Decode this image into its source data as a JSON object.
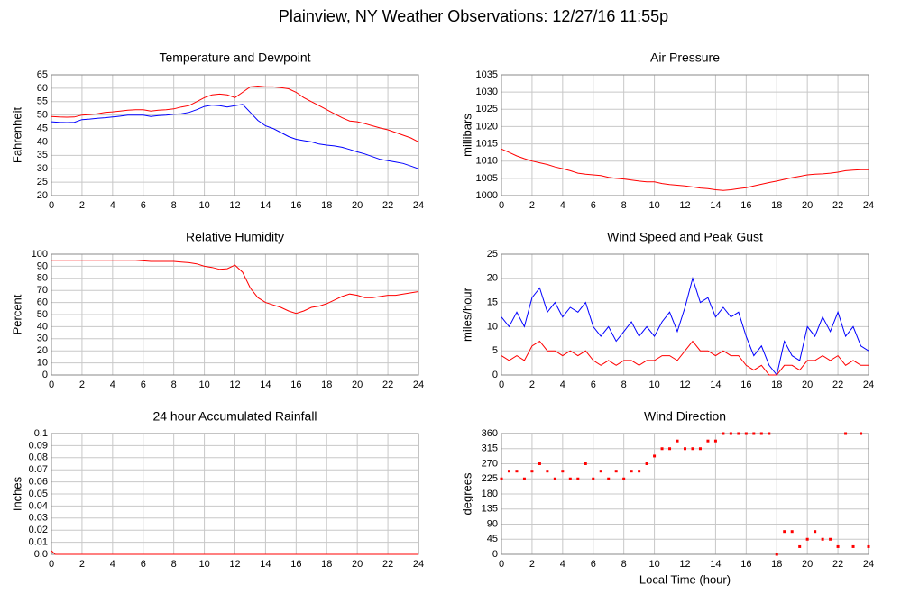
{
  "title": "Plainview, NY Weather Observations: 12/27/16 11:55p",
  "chart_data": [
    {
      "type": "line",
      "title": "Temperature and Dewpoint",
      "ylabel": "Fahrenheit",
      "xlim": [
        0,
        24
      ],
      "xticks": [
        0,
        2,
        4,
        6,
        8,
        10,
        12,
        14,
        16,
        18,
        20,
        22,
        24
      ],
      "ylim": [
        20,
        65
      ],
      "yticks": [
        20,
        25,
        30,
        35,
        40,
        45,
        50,
        55,
        60,
        65
      ],
      "grid": true,
      "x": [
        0,
        0.5,
        1,
        1.5,
        2,
        2.5,
        3,
        3.5,
        4,
        4.5,
        5,
        5.5,
        6,
        6.5,
        7,
        7.5,
        8,
        8.5,
        9,
        9.5,
        10,
        10.5,
        11,
        11.5,
        12,
        12.5,
        13,
        13.5,
        14,
        14.5,
        15,
        15.5,
        16,
        16.5,
        17,
        17.5,
        18,
        18.5,
        19,
        19.5,
        20,
        20.5,
        21,
        21.5,
        22,
        22.5,
        23,
        23.5,
        24
      ],
      "series": [
        {
          "color": "#ff0000",
          "values": [
            49.5,
            49.3,
            49.2,
            49.3,
            50,
            50.2,
            50.5,
            51,
            51.2,
            51.5,
            51.8,
            52,
            52,
            51.5,
            51.8,
            52,
            52.3,
            53,
            53.5,
            55,
            56.5,
            57.5,
            57.8,
            57.5,
            56.5,
            58.5,
            60.5,
            60.8,
            60.5,
            60.5,
            60.2,
            59.8,
            58.5,
            56.5,
            55,
            53.5,
            52,
            50.5,
            49,
            47.8,
            47.5,
            46.8,
            46,
            45.2,
            44.5,
            43.5,
            42.5,
            41.5,
            40
          ]
        },
        {
          "color": "#0000ff",
          "values": [
            47.5,
            47.3,
            47.2,
            47.3,
            48.3,
            48.5,
            48.8,
            49,
            49.3,
            49.6,
            50,
            50,
            50,
            49.5,
            49.8,
            50,
            50.3,
            50.5,
            51,
            52,
            53.2,
            53.7,
            53.5,
            53,
            53.5,
            54,
            51,
            48,
            46,
            45,
            43.5,
            42,
            41,
            40.5,
            40,
            39.2,
            38.8,
            38.5,
            38,
            37.2,
            36.3,
            35.5,
            34.5,
            33.5,
            33,
            32.5,
            32,
            31,
            30
          ]
        }
      ]
    },
    {
      "type": "line",
      "title": "Air Pressure",
      "ylabel": "millibars",
      "xlim": [
        0,
        24
      ],
      "xticks": [
        0,
        2,
        4,
        6,
        8,
        10,
        12,
        14,
        16,
        18,
        20,
        22,
        24
      ],
      "ylim": [
        1000,
        1035
      ],
      "yticks": [
        1000,
        1005,
        1010,
        1015,
        1020,
        1025,
        1030,
        1035
      ],
      "grid": true,
      "x": [
        0,
        0.5,
        1,
        1.5,
        2,
        2.5,
        3,
        3.5,
        4,
        4.5,
        5,
        5.5,
        6,
        6.5,
        7,
        7.5,
        8,
        8.5,
        9,
        9.5,
        10,
        10.5,
        11,
        11.5,
        12,
        12.5,
        13,
        13.5,
        14,
        14.5,
        15,
        15.5,
        16,
        16.5,
        17,
        17.5,
        18,
        18.5,
        19,
        19.5,
        20,
        20.5,
        21,
        21.5,
        22,
        22.5,
        23,
        23.5,
        24
      ],
      "series": [
        {
          "color": "#ff0000",
          "values": [
            1013.5,
            1012.5,
            1011.5,
            1010.7,
            1010,
            1009.5,
            1009,
            1008.3,
            1007.8,
            1007.2,
            1006.5,
            1006.2,
            1006,
            1005.8,
            1005.3,
            1005,
            1004.8,
            1004.5,
            1004.2,
            1004,
            1004,
            1003.5,
            1003.2,
            1003,
            1002.8,
            1002.5,
            1002.2,
            1002,
            1001.7,
            1001.5,
            1001.7,
            1002,
            1002.3,
            1002.8,
            1003.3,
            1003.8,
            1004.2,
            1004.7,
            1005.2,
            1005.6,
            1006,
            1006.2,
            1006.3,
            1006.5,
            1006.8,
            1007.2,
            1007.4,
            1007.5,
            1007.5
          ]
        }
      ]
    },
    {
      "type": "line",
      "title": "Relative Humidity",
      "ylabel": "Percent",
      "xlim": [
        0,
        24
      ],
      "xticks": [
        0,
        2,
        4,
        6,
        8,
        10,
        12,
        14,
        16,
        18,
        20,
        22,
        24
      ],
      "ylim": [
        0,
        100
      ],
      "yticks": [
        0,
        10,
        20,
        30,
        40,
        50,
        60,
        70,
        80,
        90,
        100
      ],
      "grid": true,
      "x": [
        0,
        0.5,
        1,
        1.5,
        2,
        2.5,
        3,
        3.5,
        4,
        4.5,
        5,
        5.5,
        6,
        6.5,
        7,
        7.5,
        8,
        8.5,
        9,
        9.5,
        10,
        10.5,
        11,
        11.5,
        12,
        12.5,
        13,
        13.5,
        14,
        14.5,
        15,
        15.5,
        16,
        16.5,
        17,
        17.5,
        18,
        18.5,
        19,
        19.5,
        20,
        20.5,
        21,
        21.5,
        22,
        22.5,
        23,
        23.5,
        24
      ],
      "series": [
        {
          "color": "#ff0000",
          "values": [
            95,
            95,
            95,
            95,
            95,
            95,
            95,
            95,
            95,
            95,
            95,
            95,
            94.5,
            94,
            94,
            94,
            94,
            93.5,
            93,
            92,
            90,
            89,
            87.5,
            88,
            91,
            85,
            72,
            64,
            60,
            58,
            56,
            53,
            51,
            53,
            56,
            57,
            59,
            62,
            65,
            67,
            66,
            64,
            64,
            65,
            66,
            66,
            67,
            68,
            69
          ]
        }
      ]
    },
    {
      "type": "line",
      "title": "Wind Speed and Peak Gust",
      "ylabel": "miles/hour",
      "xlim": [
        0,
        24
      ],
      "xticks": [
        0,
        2,
        4,
        6,
        8,
        10,
        12,
        14,
        16,
        18,
        20,
        22,
        24
      ],
      "ylim": [
        0,
        25
      ],
      "yticks": [
        0,
        5,
        10,
        15,
        20,
        25
      ],
      "grid": true,
      "x": [
        0,
        0.5,
        1,
        1.5,
        2,
        2.5,
        3,
        3.5,
        4,
        4.5,
        5,
        5.5,
        6,
        6.5,
        7,
        7.5,
        8,
        8.5,
        9,
        9.5,
        10,
        10.5,
        11,
        11.5,
        12,
        12.5,
        13,
        13.5,
        14,
        14.5,
        15,
        15.5,
        16,
        16.5,
        17,
        17.5,
        18,
        18.5,
        19,
        19.5,
        20,
        20.5,
        21,
        21.5,
        22,
        22.5,
        23,
        23.5,
        24
      ],
      "series": [
        {
          "color": "#0000ff",
          "values": [
            12,
            10,
            13,
            10,
            16,
            18,
            13,
            15,
            12,
            14,
            13,
            15,
            10,
            8,
            10,
            7,
            9,
            11,
            8,
            10,
            8,
            11,
            13,
            9,
            14,
            20,
            15,
            16,
            12,
            14,
            12,
            13,
            8,
            4,
            6,
            2,
            0,
            7,
            4,
            3,
            10,
            8,
            12,
            9,
            13,
            8,
            10,
            6,
            5
          ]
        },
        {
          "color": "#ff0000",
          "values": [
            4,
            3,
            4,
            3,
            6,
            7,
            5,
            5,
            4,
            5,
            4,
            5,
            3,
            2,
            3,
            2,
            3,
            3,
            2,
            3,
            3,
            4,
            4,
            3,
            5,
            7,
            5,
            5,
            4,
            5,
            4,
            4,
            2,
            1,
            2,
            0,
            0,
            2,
            2,
            1,
            3,
            3,
            4,
            3,
            4,
            2,
            3,
            2,
            2
          ]
        }
      ]
    },
    {
      "type": "line",
      "title": "24 hour Accumulated Rainfall",
      "ylabel": "Inches",
      "xlim": [
        0,
        24
      ],
      "xticks": [
        0,
        2,
        4,
        6,
        8,
        10,
        12,
        14,
        16,
        18,
        20,
        22,
        24
      ],
      "ylim": [
        0,
        0.1
      ],
      "yticks": [
        {
          "value": 0,
          "label": "0.0"
        },
        0.01,
        0.02,
        0.03,
        0.04,
        0.05,
        0.06,
        0.07,
        0.08,
        0.09,
        0.1
      ],
      "grid": true,
      "x": [
        0,
        0.25,
        24
      ],
      "series": [
        {
          "color": "#ff0000",
          "values": [
            0.003,
            0,
            0
          ]
        }
      ]
    },
    {
      "type": "scatter",
      "title": "Wind Direction",
      "ylabel": "degrees",
      "xlabel": "Local Time (hour)",
      "xlim": [
        0,
        24
      ],
      "xticks": [
        0,
        2,
        4,
        6,
        8,
        10,
        12,
        14,
        16,
        18,
        20,
        22,
        24
      ],
      "ylim": [
        0,
        360
      ],
      "yticks": [
        0,
        45,
        90,
        135,
        180,
        225,
        270,
        315,
        360
      ],
      "grid": true,
      "x": [
        0,
        0.5,
        1,
        1.5,
        2,
        2.5,
        3,
        3.5,
        4,
        4.5,
        5,
        5.5,
        6,
        6.5,
        7,
        7.5,
        8,
        8.5,
        9,
        9.5,
        10,
        10.5,
        11,
        11.5,
        12,
        12.5,
        13,
        13.5,
        14,
        14.5,
        15,
        15.5,
        16,
        16.5,
        17,
        17.5,
        18,
        18.5,
        19,
        19.5,
        20,
        20.5,
        21,
        21.5,
        22,
        22.5,
        23,
        23.5,
        24
      ],
      "series": [
        {
          "color": "#ff0000",
          "values": [
            225,
            248,
            248,
            225,
            248,
            270,
            248,
            225,
            248,
            225,
            225,
            270,
            225,
            248,
            225,
            248,
            225,
            248,
            248,
            270,
            293,
            315,
            315,
            338,
            315,
            315,
            315,
            338,
            338,
            360,
            360,
            360,
            360,
            360,
            360,
            360,
            0,
            68,
            68,
            23,
            45,
            68,
            45,
            45,
            23,
            360,
            23,
            360,
            23
          ]
        }
      ]
    }
  ]
}
